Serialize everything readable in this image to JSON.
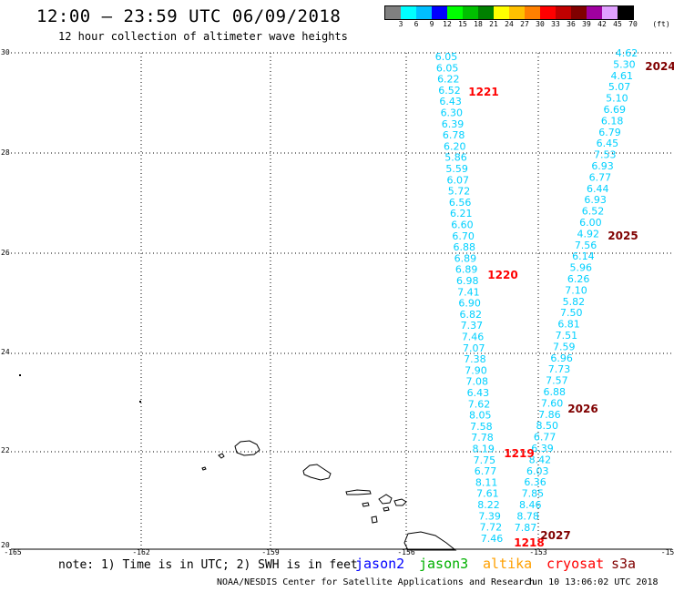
{
  "title": "12:00 – 23:59 UTC 06/09/2018",
  "subtitle": "12 hour collection of altimeter wave heights",
  "colorbar": {
    "unit_label": "(ft)",
    "labels": [
      "3",
      "6",
      "9",
      "12",
      "15",
      "18",
      "21",
      "24",
      "27",
      "30",
      "33",
      "36",
      "39",
      "42",
      "45",
      "70"
    ],
    "colors": [
      "#808080",
      "#00ffff",
      "#00bfff",
      "#0000ff",
      "#00ff00",
      "#00c000",
      "#008000",
      "#ffff00",
      "#ffc000",
      "#ff8000",
      "#ff0000",
      "#c00000",
      "#800000",
      "#a000a0",
      "#e0a0ff",
      "#000000"
    ]
  },
  "axes": {
    "y_labels": [
      "30",
      "28",
      "26",
      "24",
      "22",
      "20"
    ],
    "x_labels": [
      "-165",
      "-162",
      "-159",
      "-156",
      "-153",
      "-15"
    ]
  },
  "tracks": {
    "left_values": [
      "6.05",
      "6.05",
      "6.22",
      "6.52",
      "6.43",
      "6.30",
      "6.39",
      "6.78",
      "6.20",
      "5.86",
      "5.59",
      "6.07",
      "5.72",
      "6.56",
      "6.21",
      "6.60",
      "6.70",
      "6.88",
      "6.89",
      "6.89",
      "6.98",
      "7.41",
      "6.90",
      "6.82",
      "7.37",
      "7.46",
      "7.07",
      "7.38",
      "7.90",
      "7.08",
      "6.43",
      "7.62",
      "8.05",
      "7.58",
      "7.78",
      "8.19",
      "7.75",
      "6.77",
      "8.11",
      "7.61",
      "8.22",
      "7.39",
      "7.72",
      "7.46"
    ],
    "right_values": [
      "4.62",
      "5.30",
      "4.61",
      "5.07",
      "5.10",
      "6.69",
      "6.18",
      "6.79",
      "6.45",
      "7.53",
      "6.93",
      "6.77",
      "6.44",
      "6.93",
      "6.52",
      "6.00",
      "4.92",
      "7.56",
      "6.14",
      "5.96",
      "6.26",
      "7.10",
      "5.82",
      "7.50",
      "6.81",
      "7.51",
      "7.59",
      "6.96",
      "7.73",
      "7.57",
      "6.88",
      "7.60",
      "7.86",
      "8.50",
      "6.77",
      "6.39",
      "8.42",
      "6.03",
      "6.36",
      "7.85",
      "8.46",
      "8.78",
      "7.87"
    ]
  },
  "time_labels": [
    {
      "text": "1221",
      "color": "#ff0000"
    },
    {
      "text": "1220",
      "color": "#ff0000"
    },
    {
      "text": "1219",
      "color": "#ff0000"
    },
    {
      "text": "1218",
      "color": "#ff0000"
    },
    {
      "text": "2024",
      "color": "#800000"
    },
    {
      "text": "2025",
      "color": "#800000"
    },
    {
      "text": "2026",
      "color": "#800000"
    },
    {
      "text": "2027",
      "color": "#800000"
    }
  ],
  "footer": {
    "note": "note: 1) Time is in UTC; 2) SWH is in feet",
    "legend": [
      {
        "name": "jason2",
        "color": "#0000ff"
      },
      {
        "name": "jason3",
        "color": "#00b000"
      },
      {
        "name": "altika",
        "color": "#ffa000"
      },
      {
        "name": "cryosat",
        "color": "#ff0000"
      },
      {
        "name": "s3a",
        "color": "#800000"
      }
    ],
    "credit": "NOAA/NESDIS Center for Satellite Applications and Research",
    "timestamp": "Jun 10 13:06:02 UTC 2018"
  }
}
